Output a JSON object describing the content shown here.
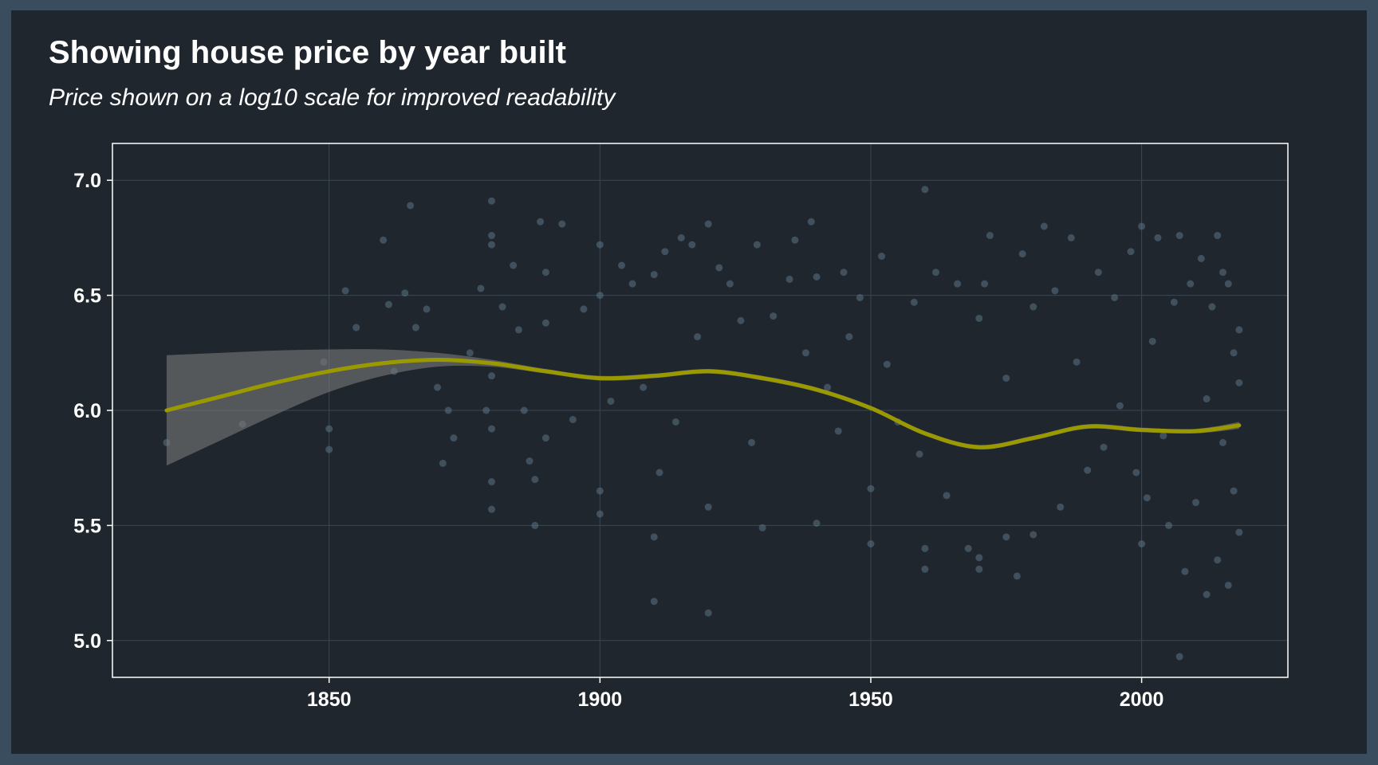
{
  "chart_data": {
    "type": "scatter",
    "title": "Showing house price by year built",
    "subtitle": "Price shown on a log10 scale for improved readability",
    "xlabel": "",
    "ylabel": "",
    "xlim": [
      1810,
      2027
    ],
    "ylim": [
      4.84,
      7.16
    ],
    "x_ticks": [
      "1850",
      "1900",
      "1950",
      "2000"
    ],
    "y_ticks": [
      "5.0",
      "5.5",
      "6.0",
      "6.5",
      "7.0"
    ],
    "grid": true,
    "colors": {
      "background": "#1f262e",
      "outer_background": "#3a4d5e",
      "points": "#5b7385",
      "smooth_line": "#9a9a00",
      "confidence_band": "#7a7a7a",
      "grid": "#3b4752",
      "panel_border": "#ffffff"
    },
    "smooth_line": {
      "x": [
        1820,
        1830,
        1840,
        1850,
        1860,
        1870,
        1880,
        1890,
        1900,
        1910,
        1920,
        1930,
        1940,
        1950,
        1960,
        1970,
        1980,
        1990,
        2000,
        2010,
        2018
      ],
      "y": [
        6.0,
        6.06,
        6.12,
        6.17,
        6.205,
        6.22,
        6.205,
        6.17,
        6.14,
        6.15,
        6.17,
        6.14,
        6.09,
        6.01,
        5.9,
        5.84,
        5.88,
        5.93,
        5.915,
        5.91,
        5.935
      ]
    },
    "confidence_band": {
      "x": [
        1820,
        1830,
        1840,
        1850,
        1860,
        1870,
        1880,
        1890,
        1900,
        1910,
        1920,
        1930,
        1940,
        1950,
        1960,
        1970,
        1980,
        1990,
        2000,
        2010,
        2018
      ],
      "lower": [
        5.76,
        5.87,
        5.98,
        6.08,
        6.15,
        6.19,
        6.19,
        6.16,
        6.13,
        6.14,
        6.16,
        6.13,
        6.08,
        6.0,
        5.89,
        5.83,
        5.87,
        5.92,
        5.905,
        5.9,
        5.92
      ],
      "upper": [
        6.24,
        6.25,
        6.26,
        6.265,
        6.265,
        6.25,
        6.22,
        6.18,
        6.15,
        6.16,
        6.18,
        6.15,
        6.1,
        6.02,
        5.91,
        5.85,
        5.89,
        5.94,
        5.925,
        5.92,
        5.95
      ]
    },
    "series": [
      {
        "points": [
          [
            1820,
            5.86
          ],
          [
            1834,
            5.94
          ],
          [
            1849,
            6.21
          ],
          [
            1850,
            5.92
          ],
          [
            1850,
            5.83
          ],
          [
            1853,
            6.52
          ],
          [
            1855,
            6.36
          ],
          [
            1860,
            6.74
          ],
          [
            1861,
            6.46
          ],
          [
            1862,
            6.17
          ],
          [
            1864,
            6.51
          ],
          [
            1865,
            6.89
          ],
          [
            1866,
            6.36
          ],
          [
            1868,
            6.44
          ],
          [
            1870,
            6.1
          ],
          [
            1871,
            5.77
          ],
          [
            1872,
            6.0
          ],
          [
            1873,
            5.88
          ],
          [
            1876,
            6.25
          ],
          [
            1878,
            6.53
          ],
          [
            1879,
            6.0
          ],
          [
            1880,
            6.91
          ],
          [
            1880,
            6.76
          ],
          [
            1880,
            6.72
          ],
          [
            1880,
            5.69
          ],
          [
            1880,
            5.57
          ],
          [
            1880,
            5.92
          ],
          [
            1880,
            6.15
          ],
          [
            1882,
            6.45
          ],
          [
            1884,
            6.63
          ],
          [
            1885,
            6.35
          ],
          [
            1886,
            6.0
          ],
          [
            1887,
            5.78
          ],
          [
            1888,
            5.5
          ],
          [
            1888,
            5.7
          ],
          [
            1889,
            6.82
          ],
          [
            1890,
            6.6
          ],
          [
            1890,
            6.38
          ],
          [
            1890,
            5.88
          ],
          [
            1893,
            6.81
          ],
          [
            1895,
            5.96
          ],
          [
            1897,
            6.44
          ],
          [
            1900,
            6.72
          ],
          [
            1900,
            5.55
          ],
          [
            1900,
            5.65
          ],
          [
            1900,
            6.5
          ],
          [
            1902,
            6.04
          ],
          [
            1904,
            6.63
          ],
          [
            1906,
            6.55
          ],
          [
            1908,
            6.1
          ],
          [
            1910,
            6.59
          ],
          [
            1910,
            5.45
          ],
          [
            1910,
            5.17
          ],
          [
            1911,
            5.73
          ],
          [
            1912,
            6.69
          ],
          [
            1914,
            5.95
          ],
          [
            1915,
            6.75
          ],
          [
            1917,
            6.72
          ],
          [
            1918,
            6.32
          ],
          [
            1920,
            6.81
          ],
          [
            1920,
            5.12
          ],
          [
            1920,
            5.58
          ],
          [
            1922,
            6.62
          ],
          [
            1924,
            6.55
          ],
          [
            1926,
            6.39
          ],
          [
            1928,
            5.86
          ],
          [
            1929,
            6.72
          ],
          [
            1930,
            5.49
          ],
          [
            1932,
            6.41
          ],
          [
            1935,
            6.57
          ],
          [
            1936,
            6.74
          ],
          [
            1938,
            6.25
          ],
          [
            1939,
            6.82
          ],
          [
            1940,
            5.51
          ],
          [
            1940,
            6.58
          ],
          [
            1942,
            6.1
          ],
          [
            1944,
            5.91
          ],
          [
            1945,
            6.6
          ],
          [
            1946,
            6.32
          ],
          [
            1948,
            6.49
          ],
          [
            1950,
            5.42
          ],
          [
            1950,
            5.66
          ],
          [
            1952,
            6.67
          ],
          [
            1953,
            6.2
          ],
          [
            1955,
            5.95
          ],
          [
            1958,
            6.47
          ],
          [
            1959,
            5.81
          ],
          [
            1960,
            6.96
          ],
          [
            1960,
            5.4
          ],
          [
            1960,
            5.31
          ],
          [
            1962,
            6.6
          ],
          [
            1964,
            5.63
          ],
          [
            1966,
            6.55
          ],
          [
            1968,
            5.4
          ],
          [
            1970,
            6.4
          ],
          [
            1970,
            5.36
          ],
          [
            1970,
            5.31
          ],
          [
            1971,
            6.55
          ],
          [
            1972,
            6.76
          ],
          [
            1975,
            5.45
          ],
          [
            1975,
            6.14
          ],
          [
            1977,
            5.28
          ],
          [
            1978,
            6.68
          ],
          [
            1980,
            6.45
          ],
          [
            1980,
            5.46
          ],
          [
            1982,
            6.8
          ],
          [
            1984,
            6.52
          ],
          [
            1985,
            5.58
          ],
          [
            1987,
            6.75
          ],
          [
            1988,
            6.21
          ],
          [
            1990,
            5.74
          ],
          [
            1992,
            6.6
          ],
          [
            1993,
            5.84
          ],
          [
            1995,
            6.49
          ],
          [
            1996,
            6.02
          ],
          [
            1998,
            6.69
          ],
          [
            1999,
            5.73
          ],
          [
            2000,
            6.8
          ],
          [
            2000,
            5.42
          ],
          [
            2001,
            5.62
          ],
          [
            2002,
            6.3
          ],
          [
            2003,
            6.75
          ],
          [
            2004,
            5.89
          ],
          [
            2005,
            5.5
          ],
          [
            2006,
            6.47
          ],
          [
            2007,
            6.76
          ],
          [
            2007,
            4.93
          ],
          [
            2008,
            5.3
          ],
          [
            2009,
            6.55
          ],
          [
            2010,
            5.6
          ],
          [
            2011,
            6.66
          ],
          [
            2012,
            5.2
          ],
          [
            2012,
            6.05
          ],
          [
            2013,
            6.45
          ],
          [
            2014,
            6.76
          ],
          [
            2014,
            5.35
          ],
          [
            2015,
            6.6
          ],
          [
            2015,
            5.86
          ],
          [
            2016,
            5.24
          ],
          [
            2016,
            6.55
          ],
          [
            2017,
            6.25
          ],
          [
            2017,
            5.65
          ],
          [
            2018,
            6.12
          ],
          [
            2018,
            5.47
          ],
          [
            2018,
            6.35
          ]
        ]
      }
    ]
  }
}
